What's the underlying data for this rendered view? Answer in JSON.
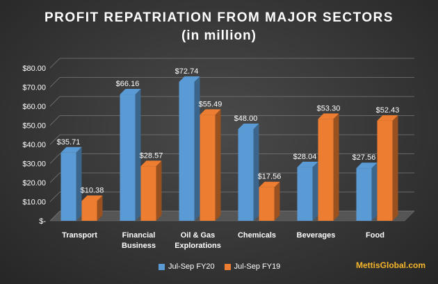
{
  "chart_data": {
    "type": "bar",
    "title": "PROFIT REPATRIATION FROM MAJOR SECTORS",
    "subtitle": "(in million)",
    "categories": [
      [
        "Transport"
      ],
      [
        "Financial",
        "Business"
      ],
      [
        "Oil & Gas",
        "Explorations"
      ],
      [
        "Chemicals"
      ],
      [
        "Beverages"
      ],
      [
        "Food"
      ]
    ],
    "series": [
      {
        "name": "Jul-Sep FY20",
        "color": "#5b9bd5",
        "values": [
          35.71,
          66.16,
          72.74,
          48.0,
          28.04,
          27.56
        ],
        "labels": [
          "$35.71",
          "$66.16",
          "$72.74",
          "$48.00",
          "$28.04",
          "$27.56"
        ]
      },
      {
        "name": "Jul-Sep FY19",
        "color": "#ed7d31",
        "values": [
          10.38,
          28.57,
          55.49,
          17.56,
          53.3,
          52.43
        ],
        "labels": [
          "$10.38",
          "$28.57",
          "$55.49",
          "$17.56",
          "$53.30",
          "$52.43"
        ]
      }
    ],
    "yticks": [
      0,
      10,
      20,
      30,
      40,
      50,
      60,
      70,
      80
    ],
    "ytick_labels": [
      "$-",
      "$10.00",
      "$20.00",
      "$30.00",
      "$40.00",
      "$50.00",
      "$60.00",
      "$70.00",
      "$80.00"
    ],
    "ylim": [
      0,
      80
    ],
    "grid": true,
    "legend": "bottom"
  },
  "brand": "MettisGlobal.com"
}
